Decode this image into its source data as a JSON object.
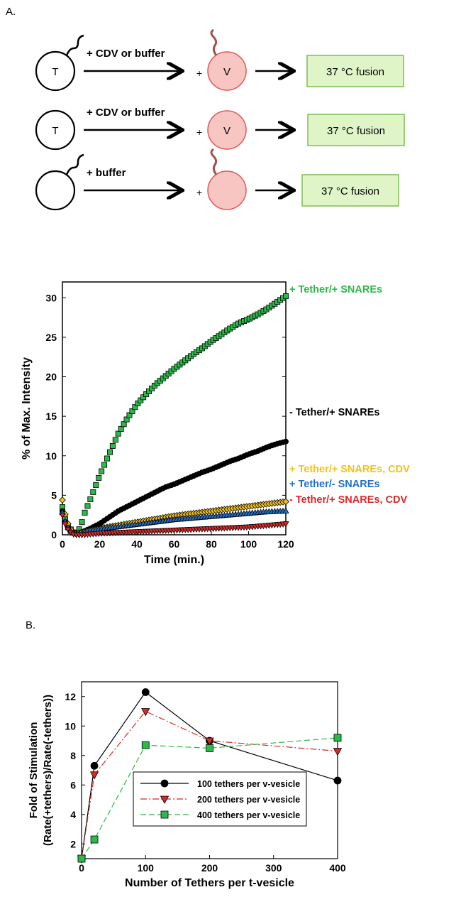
{
  "panel_a_label": "A.",
  "panel_b_label": "B.",
  "colors": {
    "green": "#2db84a",
    "black": "#000000",
    "yellow": "#f2c21b",
    "blue": "#1f6fc7",
    "red": "#d62b2b",
    "box_fill": "#dff5c8",
    "box_stroke": "#7cbf4d",
    "vesicle_fill": "#f7c6c3",
    "vesicle_stroke": "#e05a5a",
    "tether_brown": "#a0524c"
  },
  "scheme": {
    "rows": [
      {
        "t_label": "T",
        "t_tether": true,
        "treatment": "+  CDV or buffer",
        "plus": "+",
        "v_label": "V",
        "v_tether": true,
        "result": "37 °C fusion"
      },
      {
        "t_label": "T",
        "t_tether": false,
        "treatment": "+  CDV or buffer",
        "plus": "+",
        "v_label": "V",
        "v_tether": false,
        "result": "37 °C fusion"
      },
      {
        "t_label": "",
        "t_tether": true,
        "treatment": "+   buffer",
        "plus": "+",
        "v_label": "",
        "v_tether": true,
        "result": "37 °C fusion"
      }
    ]
  },
  "chart_data": [
    {
      "type": "scatter",
      "title": "",
      "xlabel": "Time (min.)",
      "ylabel": "% of Max. Intensity",
      "xlim": [
        0,
        120
      ],
      "ylim": [
        0,
        32
      ],
      "xticks": [
        "0",
        "20",
        "40",
        "60",
        "80",
        "100",
        "120"
      ],
      "yticks": [
        "0",
        "5",
        "10",
        "15",
        "20",
        "25",
        "30"
      ],
      "series": [
        {
          "name": "+ Tether/+ SNAREs",
          "color": "#2db84a",
          "marker": "square",
          "x": [
            0,
            2,
            4,
            6,
            8,
            10,
            12,
            15,
            20,
            25,
            30,
            35,
            40,
            45,
            50,
            55,
            60,
            65,
            70,
            75,
            80,
            85,
            90,
            95,
            100,
            105,
            110,
            115,
            120
          ],
          "y": [
            3.5,
            1.5,
            0.8,
            0.3,
            0.2,
            1.2,
            2.8,
            4.5,
            7.5,
            10.2,
            12.8,
            14.8,
            16.5,
            17.8,
            19.0,
            20.0,
            21.0,
            21.9,
            22.8,
            23.6,
            24.5,
            25.3,
            26.1,
            26.8,
            27.3,
            27.9,
            28.6,
            29.4,
            30.2
          ]
        },
        {
          "name": "- Tether/+ SNAREs",
          "color": "#000000",
          "marker": "circle",
          "x": [
            0,
            2,
            4,
            6,
            8,
            10,
            12,
            15,
            20,
            25,
            30,
            35,
            40,
            45,
            50,
            55,
            60,
            65,
            70,
            75,
            80,
            85,
            90,
            95,
            100,
            105,
            110,
            115,
            120
          ],
          "y": [
            3.0,
            1.2,
            0.5,
            0.2,
            0.1,
            0.3,
            0.5,
            0.8,
            1.4,
            2.2,
            3.0,
            3.6,
            4.2,
            4.8,
            5.4,
            6.0,
            6.4,
            6.9,
            7.4,
            7.9,
            8.3,
            8.8,
            9.3,
            9.7,
            10.2,
            10.6,
            11.1,
            11.5,
            11.8
          ]
        },
        {
          "name": "+ Tether/+ SNAREs,  CDV",
          "color": "#f2c21b",
          "marker": "diamond",
          "x": [
            0,
            2,
            4,
            6,
            8,
            10,
            15,
            20,
            30,
            40,
            50,
            60,
            70,
            80,
            90,
            100,
            110,
            120
          ],
          "y": [
            4.4,
            2.0,
            0.8,
            0.3,
            0.2,
            0.3,
            0.6,
            0.8,
            1.2,
            1.6,
            2.0,
            2.4,
            2.7,
            3.0,
            3.3,
            3.6,
            3.9,
            4.2
          ]
        },
        {
          "name": "+ Tether/- SNAREs",
          "color": "#1f6fc7",
          "marker": "triangle-up",
          "x": [
            0,
            2,
            4,
            6,
            8,
            10,
            15,
            20,
            30,
            40,
            50,
            60,
            70,
            80,
            90,
            100,
            110,
            120
          ],
          "y": [
            2.8,
            1.3,
            0.5,
            0.2,
            0.1,
            0.2,
            0.5,
            0.7,
            1.0,
            1.3,
            1.6,
            1.9,
            2.1,
            2.3,
            2.5,
            2.7,
            2.9,
            3.0
          ]
        },
        {
          "name": "- Tether/+ SNAREs,  CDV",
          "color": "#d62b2b",
          "marker": "triangle-down",
          "x": [
            0,
            2,
            4,
            6,
            8,
            10,
            15,
            20,
            30,
            40,
            50,
            60,
            70,
            80,
            90,
            100,
            110,
            120
          ],
          "y": [
            2.5,
            1.0,
            0.4,
            0.1,
            0.0,
            0.0,
            0.1,
            0.2,
            0.3,
            0.4,
            0.5,
            0.6,
            0.7,
            0.8,
            0.9,
            1.0,
            1.2,
            1.4
          ]
        }
      ]
    },
    {
      "type": "line",
      "title": "",
      "xlabel": "Number of Tethers per t-vesicle",
      "ylabel": "Fold of Stimulation",
      "ylabel2": "(Rate(+tethers)/Rate(-tethers))",
      "xlim": [
        0,
        400
      ],
      "ylim": [
        1,
        13
      ],
      "xticks": [
        "0",
        "100",
        "200",
        "300",
        "400"
      ],
      "yticks": [
        "2",
        "4",
        "6",
        "8",
        "10",
        "12"
      ],
      "legend_position": "bottom-center",
      "x": [
        0,
        20,
        100,
        200,
        400
      ],
      "series": [
        {
          "name": "100 tethers per v-vesicle",
          "color": "#000000",
          "marker": "circle",
          "dash": "",
          "values": [
            1.0,
            7.3,
            12.3,
            9.0,
            6.3
          ]
        },
        {
          "name": "200 tethers per v-vesicle",
          "color": "#d62b2b",
          "marker": "triangle-down",
          "dash": "9,3,2,3",
          "values": [
            1.0,
            6.7,
            11.0,
            9.0,
            8.3
          ]
        },
        {
          "name": "400 tethers per v-vesicle",
          "color": "#2db84a",
          "marker": "square",
          "dash": "8,4",
          "values": [
            1.0,
            2.3,
            8.7,
            8.5,
            9.2
          ]
        }
      ]
    }
  ]
}
